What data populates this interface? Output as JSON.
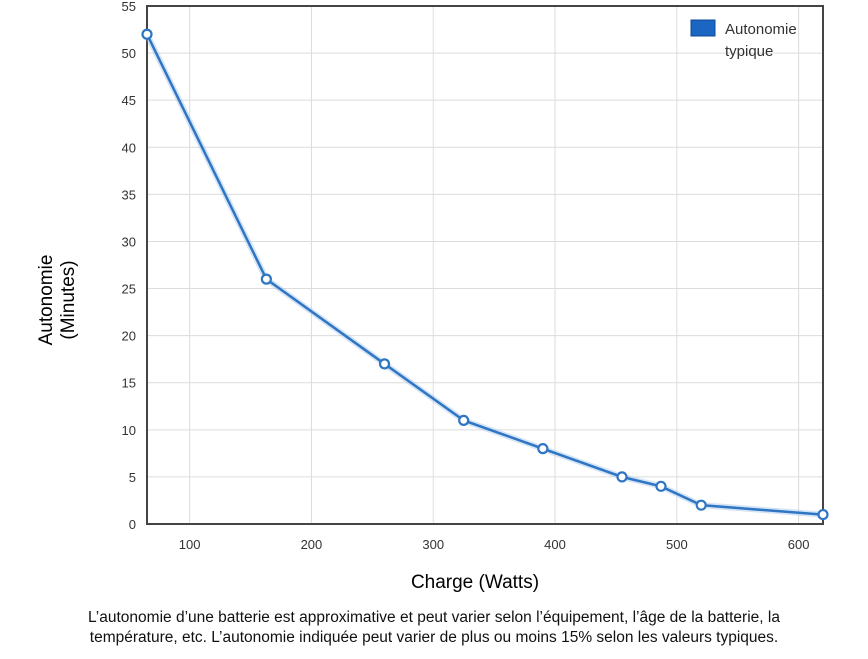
{
  "chart_data": {
    "type": "line",
    "xlabel": "Charge (Watts)",
    "ylabel_lines": [
      "Autonomie",
      "(Minutes)"
    ],
    "xlim": [
      65,
      620
    ],
    "ylim": [
      0,
      55
    ],
    "x_ticks": [
      100,
      200,
      300,
      400,
      500,
      600
    ],
    "y_ticks": [
      0,
      5,
      10,
      15,
      20,
      25,
      30,
      35,
      40,
      45,
      50,
      55
    ],
    "grid": true,
    "legend_position": "top-right",
    "series": [
      {
        "name_lines": [
          "Autonomie",
          "typique"
        ],
        "color": "#2e75c4",
        "x": [
          65,
          163,
          260,
          325,
          390,
          455,
          487,
          520,
          620
        ],
        "y": [
          52,
          26,
          17,
          11,
          8,
          5,
          4,
          2,
          1
        ]
      }
    ]
  },
  "footnote": {
    "line1": "L’autonomie d’une batterie est approximative et peut varier selon l’équipement, l’âge de la batterie, la",
    "line2": "température, etc. L’autonomie indiquée peut varier de plus ou moins 15% selon les valeurs typiques."
  }
}
